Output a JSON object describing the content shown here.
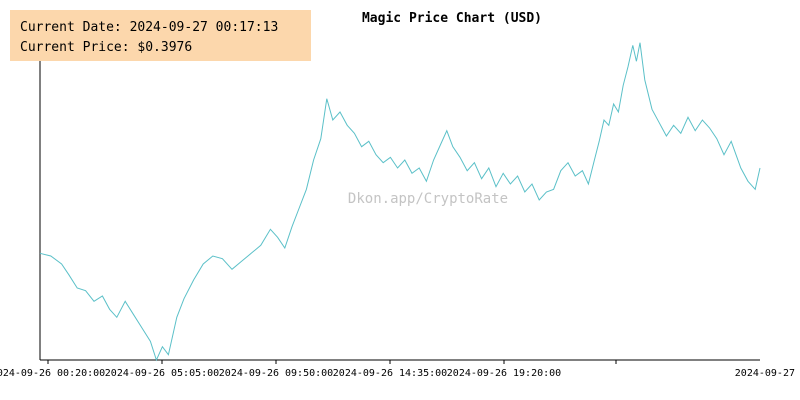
{
  "info": {
    "date_label": "Current Date:",
    "date_value": "2024-09-27 00:17:13",
    "price_label": "Current Price:",
    "price_value": "$0.3976"
  },
  "watermark": "Dkon.app/CryptoRate",
  "colors": {
    "line": "#5bc0c8",
    "axis": "#000000",
    "info_bg": "#fcd7ac",
    "watermark": "#c4c4c4"
  },
  "chart_data": {
    "type": "line",
    "title": "Magic Price Chart (USD)",
    "xlabel": "",
    "ylabel": "",
    "grid": false,
    "x_tick_labels": [
      "2024-09-26 00:20:00",
      "2024-09-26 05:05:00",
      "2024-09-26 09:50:00",
      "2024-09-26 14:35:00",
      "2024-09-26 19:20:00",
      "2024-09-27"
    ],
    "x_tick_hours": [
      0.333,
      5.083,
      9.833,
      14.583,
      19.333,
      24.0
    ],
    "ylim": [
      0.3,
      0.42
    ],
    "series": [
      {
        "points": [
          [
            0.0,
            0.34
          ],
          [
            0.45,
            0.339
          ],
          [
            0.9,
            0.336
          ],
          [
            1.2,
            0.332
          ],
          [
            1.55,
            0.327
          ],
          [
            1.9,
            0.326
          ],
          [
            2.25,
            0.322
          ],
          [
            2.6,
            0.324
          ],
          [
            2.9,
            0.319
          ],
          [
            3.2,
            0.316
          ],
          [
            3.55,
            0.322
          ],
          [
            3.9,
            0.317
          ],
          [
            4.25,
            0.312
          ],
          [
            4.6,
            0.307
          ],
          [
            4.85,
            0.3
          ],
          [
            5.1,
            0.305
          ],
          [
            5.35,
            0.302
          ],
          [
            5.7,
            0.316
          ],
          [
            6.0,
            0.323
          ],
          [
            6.4,
            0.33
          ],
          [
            6.8,
            0.336
          ],
          [
            7.2,
            0.339
          ],
          [
            7.6,
            0.338
          ],
          [
            8.0,
            0.334
          ],
          [
            8.4,
            0.337
          ],
          [
            8.8,
            0.34
          ],
          [
            9.2,
            0.343
          ],
          [
            9.6,
            0.349
          ],
          [
            9.9,
            0.346
          ],
          [
            10.2,
            0.342
          ],
          [
            10.5,
            0.35
          ],
          [
            10.8,
            0.357
          ],
          [
            11.1,
            0.364
          ],
          [
            11.4,
            0.375
          ],
          [
            11.7,
            0.383
          ],
          [
            11.95,
            0.398
          ],
          [
            12.2,
            0.39
          ],
          [
            12.5,
            0.393
          ],
          [
            12.8,
            0.388
          ],
          [
            13.1,
            0.385
          ],
          [
            13.4,
            0.38
          ],
          [
            13.7,
            0.382
          ],
          [
            14.0,
            0.377
          ],
          [
            14.3,
            0.374
          ],
          [
            14.6,
            0.376
          ],
          [
            14.9,
            0.372
          ],
          [
            15.2,
            0.375
          ],
          [
            15.5,
            0.37
          ],
          [
            15.8,
            0.372
          ],
          [
            16.1,
            0.367
          ],
          [
            16.4,
            0.375
          ],
          [
            16.7,
            0.381
          ],
          [
            16.95,
            0.386
          ],
          [
            17.2,
            0.38
          ],
          [
            17.5,
            0.376
          ],
          [
            17.8,
            0.371
          ],
          [
            18.1,
            0.374
          ],
          [
            18.4,
            0.368
          ],
          [
            18.7,
            0.372
          ],
          [
            19.0,
            0.365
          ],
          [
            19.3,
            0.37
          ],
          [
            19.6,
            0.366
          ],
          [
            19.9,
            0.369
          ],
          [
            20.2,
            0.363
          ],
          [
            20.5,
            0.366
          ],
          [
            20.8,
            0.36
          ],
          [
            21.1,
            0.363
          ],
          [
            21.4,
            0.364
          ],
          [
            21.7,
            0.371
          ],
          [
            22.0,
            0.374
          ],
          [
            22.3,
            0.369
          ],
          [
            22.6,
            0.371
          ],
          [
            22.85,
            0.366
          ],
          [
            23.1,
            0.375
          ],
          [
            23.3,
            0.382
          ],
          [
            23.5,
            0.39
          ],
          [
            23.7,
            0.388
          ],
          [
            23.9,
            0.396
          ],
          [
            24.1,
            0.393
          ],
          [
            24.3,
            0.403
          ],
          [
            24.5,
            0.41
          ],
          [
            24.7,
            0.418
          ],
          [
            24.85,
            0.412
          ],
          [
            25.0,
            0.419
          ],
          [
            25.2,
            0.405
          ],
          [
            25.5,
            0.394
          ],
          [
            25.8,
            0.389
          ],
          [
            26.1,
            0.384
          ],
          [
            26.4,
            0.388
          ],
          [
            26.7,
            0.385
          ],
          [
            27.0,
            0.391
          ],
          [
            27.3,
            0.386
          ],
          [
            27.6,
            0.39
          ],
          [
            27.9,
            0.387
          ],
          [
            28.2,
            0.383
          ],
          [
            28.5,
            0.377
          ],
          [
            28.8,
            0.382
          ],
          [
            29.0,
            0.377
          ],
          [
            29.2,
            0.372
          ],
          [
            29.5,
            0.367
          ],
          [
            29.8,
            0.364
          ],
          [
            30.0,
            0.372
          ]
        ]
      }
    ]
  }
}
